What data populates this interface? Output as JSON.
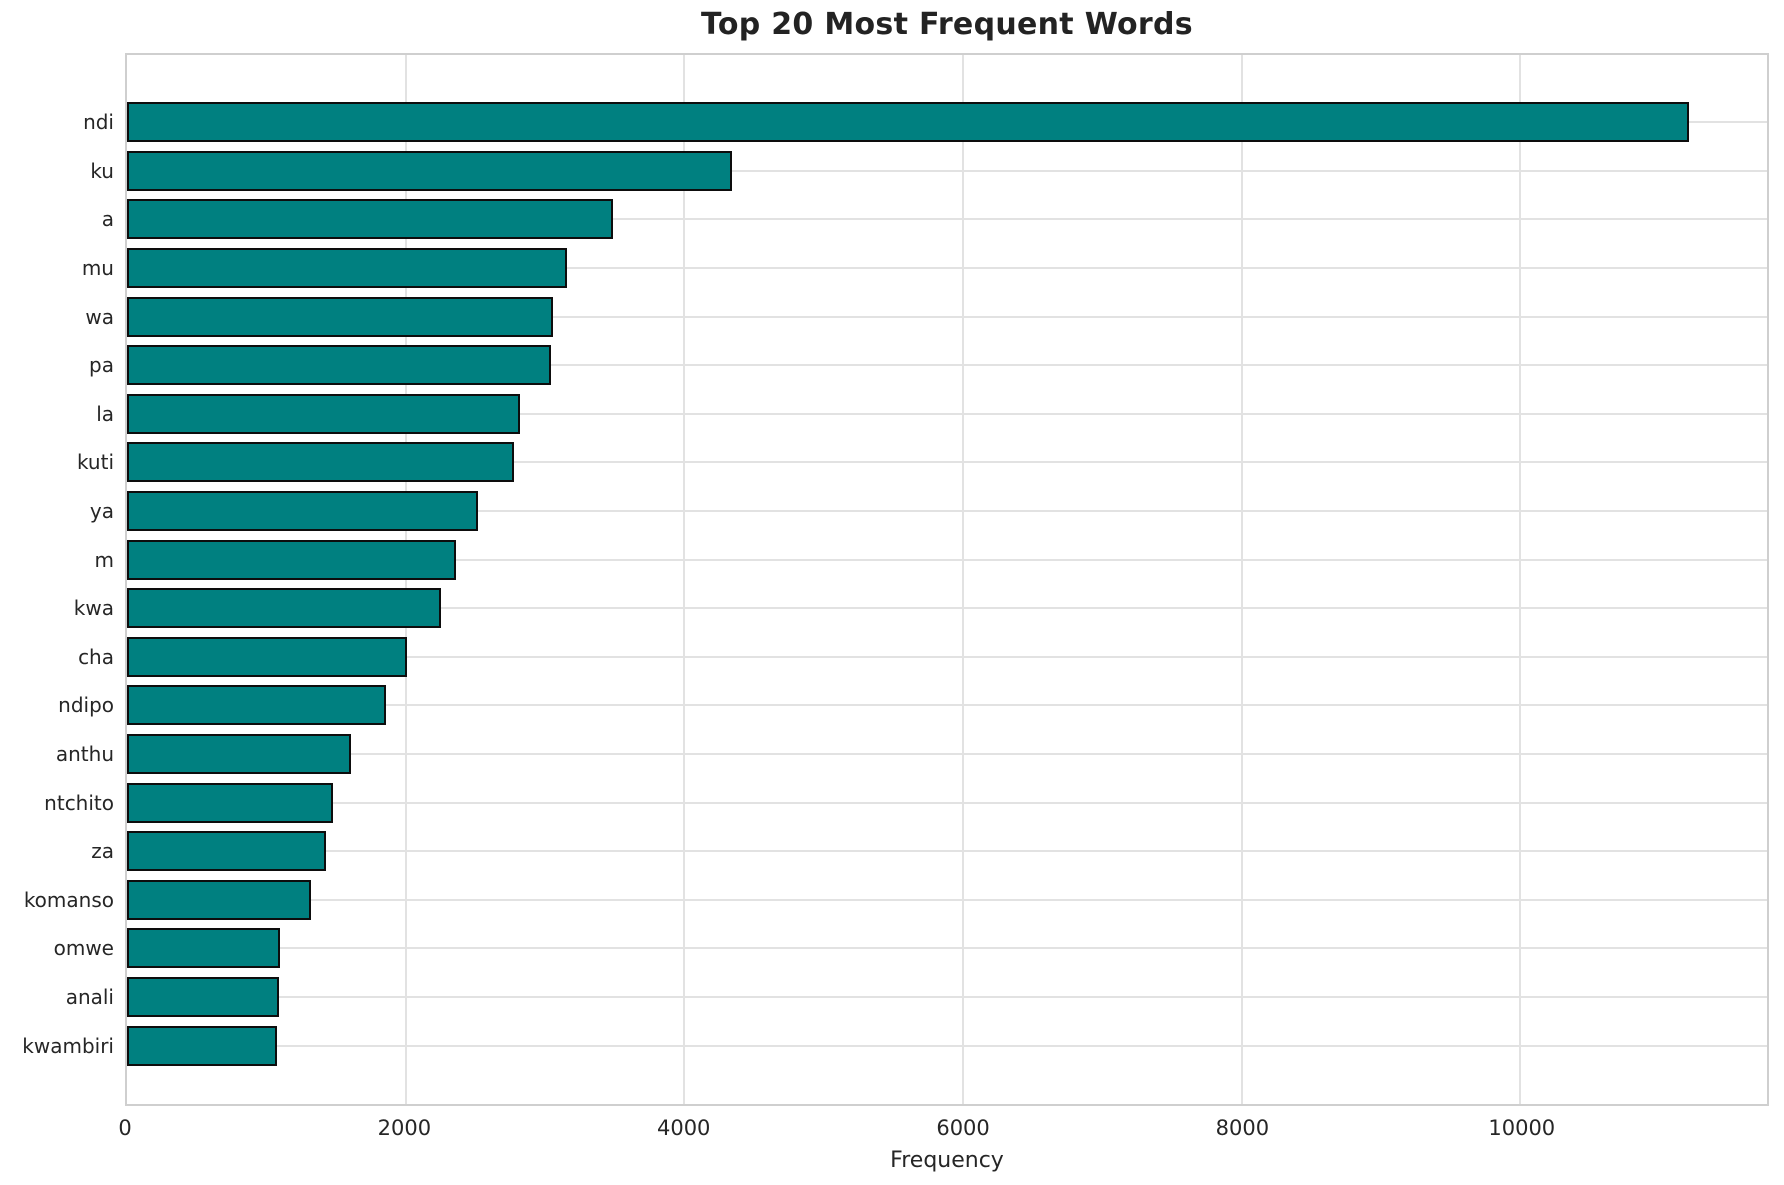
{
  "title": "Top 20 Most Frequent Words",
  "colors": {
    "bar_fill": "#008080",
    "bar_edge": "#0d0d0d",
    "grid": "#e2e2e2",
    "spine": "#cfcfcf",
    "text": "#262626",
    "background": "#ffffff"
  },
  "chart_data": {
    "type": "bar",
    "orientation": "horizontal",
    "title": "Top 20 Most Frequent Words",
    "xlabel": "Frequency",
    "ylabel": "",
    "categories": [
      "ndi",
      "ku",
      "a",
      "mu",
      "wa",
      "pa",
      "la",
      "kuti",
      "ya",
      "m",
      "kwa",
      "cha",
      "ndipo",
      "anthu",
      "ntchito",
      "za",
      "komanso",
      "omwe",
      "anali",
      "kwambiri"
    ],
    "values": [
      11210,
      4340,
      3490,
      3160,
      3060,
      3040,
      2820,
      2780,
      2520,
      2360,
      2250,
      2010,
      1860,
      1610,
      1480,
      1430,
      1320,
      1100,
      1090,
      1080
    ],
    "xlim": [
      0,
      11770
    ],
    "xticks": [
      0,
      2000,
      4000,
      6000,
      8000,
      10000
    ],
    "grid": true,
    "legend": false
  }
}
